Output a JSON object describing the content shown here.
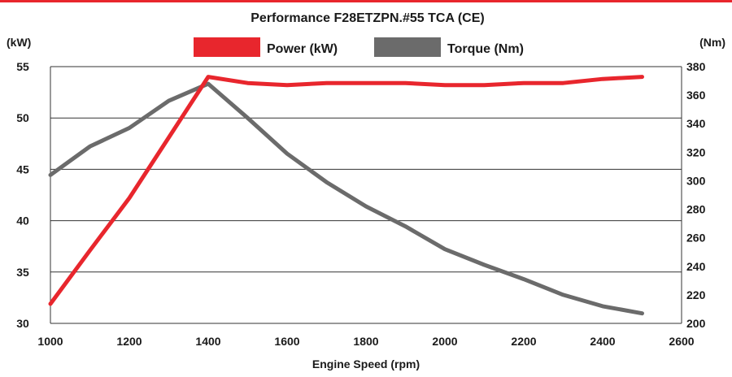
{
  "chart_data": {
    "type": "line",
    "title": "Performance F28ETZPN.#55 TCA (CE)",
    "xlabel": "Engine Speed (rpm)",
    "ylabel_left": "(kW)",
    "ylabel_right": "(Nm)",
    "xlim": [
      1000,
      2600
    ],
    "ylim_left": [
      30,
      55
    ],
    "ylim_right": [
      200,
      380
    ],
    "x_ticks": [
      "1000",
      "1200",
      "1400",
      "1600",
      "1800",
      "2000",
      "2200",
      "2400",
      "2600"
    ],
    "y_left_ticks": [
      "55",
      "50",
      "45",
      "40",
      "35",
      "30"
    ],
    "y_right_ticks": [
      "380",
      "360",
      "340",
      "320",
      "300",
      "280",
      "260",
      "240",
      "220",
      "200"
    ],
    "grid": "horizontal",
    "legend": "top-center",
    "series": [
      {
        "name": "Power (kW)",
        "axis": "left",
        "color": "#e8262d",
        "x": [
          1000,
          1100,
          1200,
          1300,
          1400,
          1500,
          1600,
          1700,
          1800,
          1900,
          2000,
          2100,
          2200,
          2300,
          2400,
          2500
        ],
        "values": [
          31.9,
          37.1,
          42.2,
          48.1,
          54.0,
          53.4,
          53.2,
          53.4,
          53.4,
          53.4,
          53.2,
          53.2,
          53.4,
          53.4,
          53.8,
          54.0
        ]
      },
      {
        "name": "Torque (Nm)",
        "axis": "right",
        "color": "#6b6b6b",
        "x": [
          1000,
          1100,
          1200,
          1300,
          1400,
          1500,
          1600,
          1700,
          1800,
          1900,
          2000,
          2100,
          2200,
          2300,
          2400,
          2500
        ],
        "values": [
          304,
          324,
          337,
          356,
          368,
          344,
          319,
          299,
          282,
          268,
          252,
          241,
          231,
          220,
          212,
          207
        ]
      }
    ]
  },
  "colors": {
    "accent_bar": "#e8262d",
    "grid": "#333333",
    "text": "#1a1a1a"
  }
}
